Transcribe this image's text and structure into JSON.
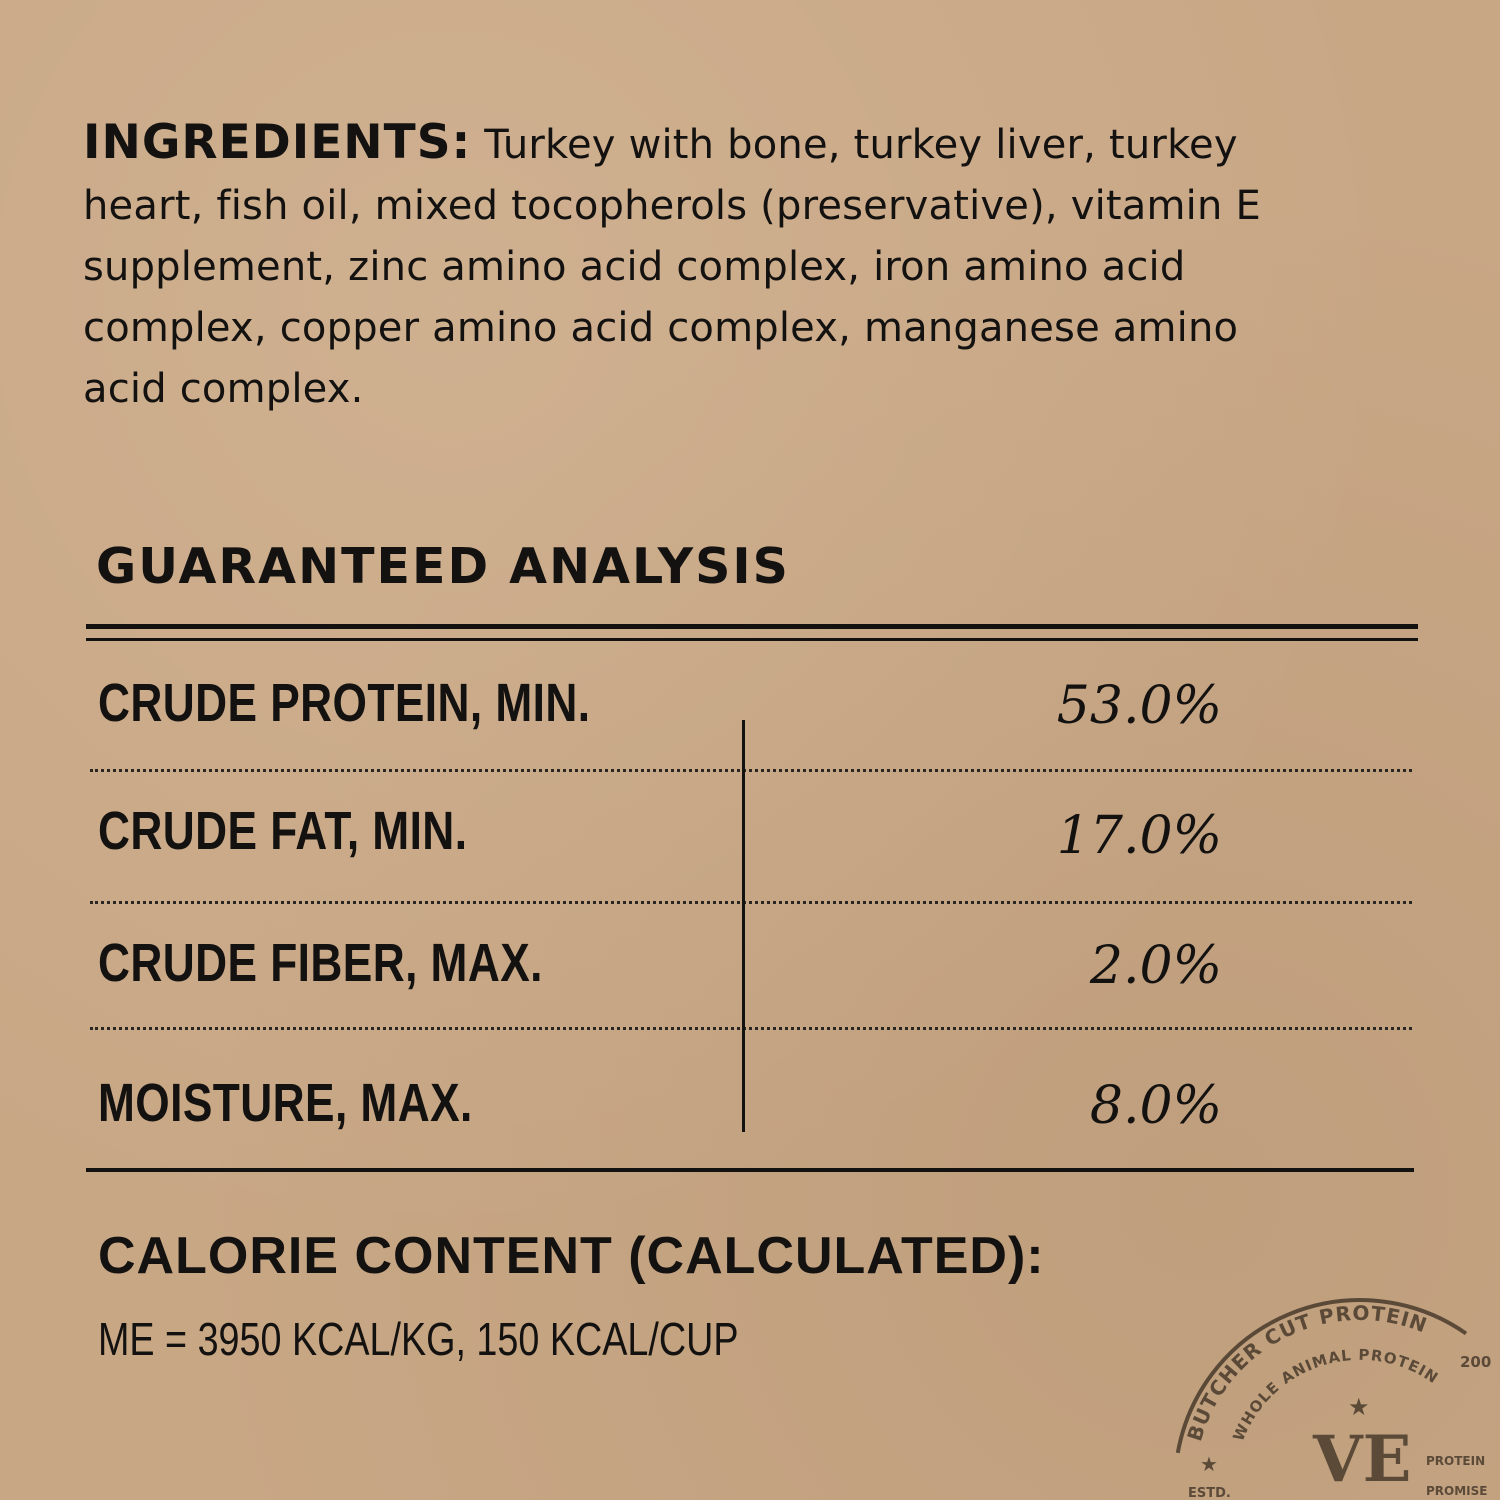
{
  "ingredients": {
    "heading": "INGREDIENTS:",
    "text": "Turkey with bone, turkey liver, turkey heart, fish oil, mixed tocopherols (preservative), vitamin E supplement, zinc amino acid complex, iron amino acid complex, copper amino acid complex, manganese amino acid complex."
  },
  "analysis": {
    "heading": "GUARANTEED ANALYSIS",
    "rows": [
      {
        "label": "CRUDE PROTEIN, MIN.",
        "value": "53.0%"
      },
      {
        "label": "CRUDE FAT, MIN.",
        "value": "17.0%"
      },
      {
        "label": "CRUDE FIBER, MAX.",
        "value": "2.0%"
      },
      {
        "label": "MOISTURE, MAX.",
        "value": "8.0%"
      }
    ]
  },
  "calorie": {
    "heading": "CALORIE CONTENT (CALCULATED):",
    "text": "ME = 3950 KCAL/KG, 150 KCAL/CUP"
  },
  "stamp": {
    "outer_text": "BUTCHER CUT PROTEIN",
    "inner_text": "WHOLE ANIMAL PROTEIN",
    "estd": "ESTD.",
    "year": "200",
    "promise": "PROMISE",
    "protein_lower": "PROTEIN",
    "monogram": "VE",
    "ink_color": "#4a3b2c"
  },
  "colors": {
    "background": "#c8a785",
    "text": "#141210"
  }
}
